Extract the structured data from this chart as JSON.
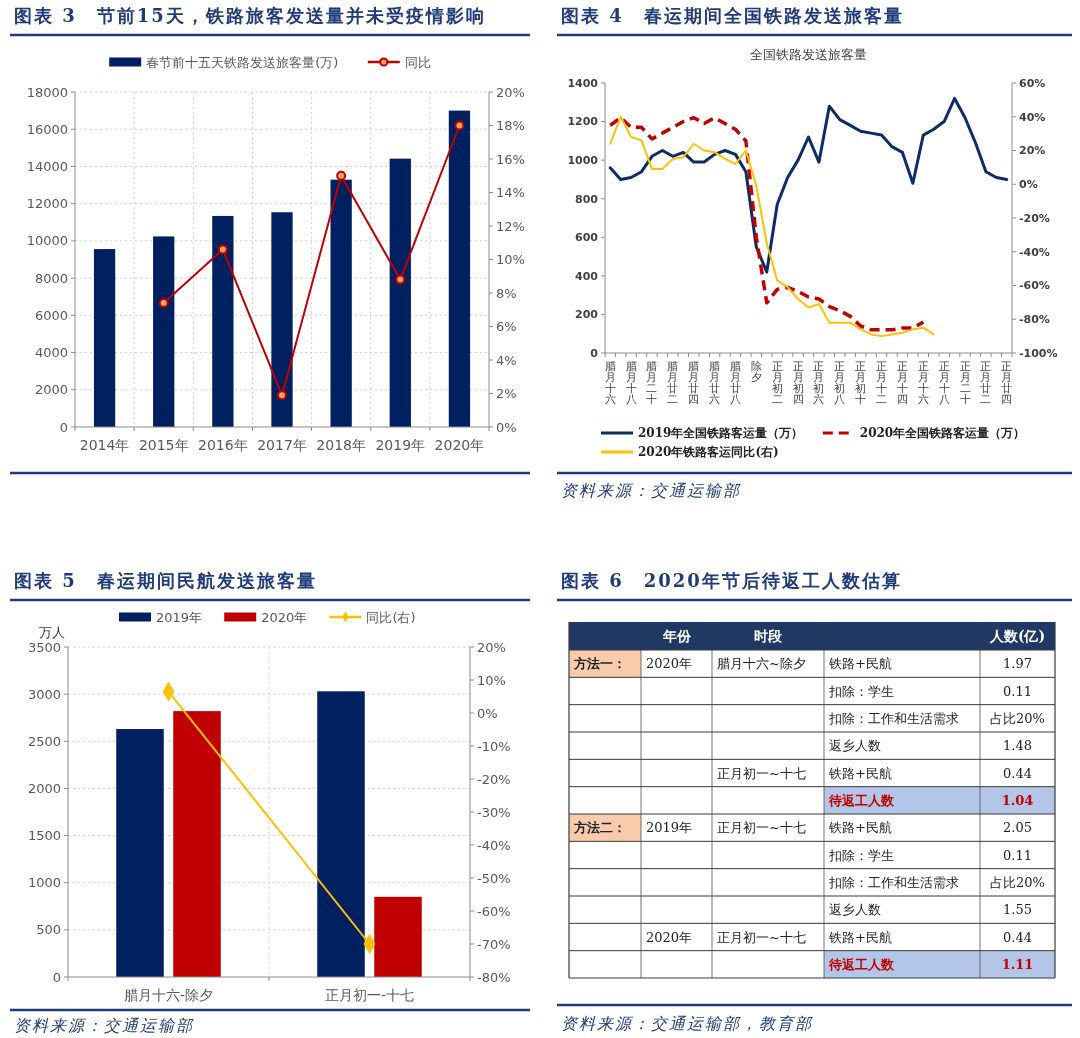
{
  "chart_data": [
    {
      "type": "bar",
      "title": "图表 3　节前15天，铁路旅客发送量并未受疫情影响",
      "categories": [
        "2014年",
        "2015年",
        "2016年",
        "2017年",
        "2018年",
        "2019年",
        "2020年"
      ],
      "series": [
        {
          "name": "春节前十五天铁路发送旅客量(万)",
          "color": "#002060",
          "values": [
            9560,
            10240,
            11340,
            11540,
            13290,
            14420,
            17000
          ]
        },
        {
          "name": "同比",
          "type": "line",
          "axis": "y2",
          "color": "#c00000",
          "values": [
            null,
            7.4,
            10.6,
            1.9,
            15.0,
            8.8,
            18.0
          ]
        }
      ],
      "marker": "circle",
      "ylim": [
        0,
        18000
      ],
      "yticks": [
        0,
        2000,
        4000,
        6000,
        8000,
        10000,
        12000,
        14000,
        16000,
        18000
      ],
      "y2lim": [
        0,
        20
      ],
      "y2ticks": [
        {
          "value": 0,
          "label": "0%"
        },
        {
          "value": 2,
          "label": "2%"
        },
        {
          "value": 4,
          "label": "4%"
        },
        {
          "value": 6,
          "label": "6%"
        },
        {
          "value": 8,
          "label": "8%"
        },
        {
          "value": 10,
          "label": "10%"
        },
        {
          "value": 12,
          "label": "12%"
        },
        {
          "value": 14,
          "label": "14%"
        },
        {
          "value": 16,
          "label": "16%"
        },
        {
          "value": 18,
          "label": "18%"
        },
        {
          "value": 20,
          "label": "20%"
        }
      ],
      "grid": true,
      "legend": "top"
    },
    {
      "type": "line",
      "title": "图表 4　春运期间全国铁路发送旅客量",
      "subtitle": "全国铁路发送旅客量",
      "categories": [
        "腊月十六",
        null,
        "腊月十八",
        null,
        "腊月二十",
        null,
        "腊月廿二",
        null,
        "腊月廿四",
        null,
        "腊月廿六",
        null,
        "腊月廿八",
        null,
        "除夕",
        null,
        "正月初二",
        null,
        "正月初四",
        null,
        "正月初六",
        null,
        "正月初八",
        null,
        "正月初十",
        null,
        "正月十二",
        null,
        "正月十四",
        null,
        "正月十六",
        null,
        "正月十八",
        null,
        "正月二十",
        null,
        "正月廿二",
        null,
        "正月廿四"
      ],
      "series": [
        {
          "name": "2019年全国铁路客运量（万）",
          "color": "#0c2c64",
          "values": [
            960,
            900,
            910,
            940,
            1020,
            1050,
            1020,
            1040,
            990,
            990,
            1030,
            1050,
            1030,
            940,
            550,
            420,
            770,
            910,
            1000,
            1120,
            990,
            1280,
            1210,
            1180,
            1150,
            1140,
            1130,
            1070,
            1040,
            880,
            1130,
            1160,
            1200,
            1320,
            1220,
            1090,
            940,
            910,
            900
          ]
        },
        {
          "name": "2020年全国铁路客运量（万）",
          "color": "#c00000",
          "line_style": "dashed",
          "values": [
            1180,
            1220,
            1170,
            1170,
            1110,
            1140,
            1170,
            1200,
            1220,
            1190,
            1220,
            1190,
            1160,
            1100,
            600,
            260,
            330,
            340,
            320,
            290,
            280,
            240,
            220,
            190,
            140,
            120,
            120,
            120,
            130,
            130,
            160,
            null,
            null,
            null,
            null,
            null,
            null,
            null,
            null
          ]
        },
        {
          "name": "2020年铁路客运同比(右)",
          "color": "#ffc000",
          "axis": "y2",
          "values": [
            24,
            40,
            28,
            26,
            9,
            9,
            15,
            16,
            24,
            20,
            19,
            15,
            12,
            20,
            -1,
            -35,
            -57,
            -61,
            -68,
            -73,
            -71,
            -82,
            -82,
            -82,
            -86,
            -89,
            -90,
            -89,
            -88,
            -86,
            -85,
            -89,
            null,
            null,
            null,
            null,
            null,
            null,
            null
          ]
        }
      ],
      "line_style": "solid",
      "ylim": [
        0,
        1400
      ],
      "yticks": [
        0,
        200,
        400,
        600,
        800,
        1000,
        1200,
        1400
      ],
      "y2lim": [
        -100,
        60
      ],
      "y2ticks": [
        {
          "value": -100,
          "label": "-100%"
        },
        {
          "value": -80,
          "label": "-80%"
        },
        {
          "value": -60,
          "label": "-60%"
        },
        {
          "value": -40,
          "label": "-40%"
        },
        {
          "value": -20,
          "label": "-20%"
        },
        {
          "value": 0,
          "label": "0%"
        },
        {
          "value": 20,
          "label": "20%"
        },
        {
          "value": 40,
          "label": "40%"
        },
        {
          "value": 60,
          "label": "60%"
        }
      ],
      "legend": "bottom",
      "annotations": [
        "资料来源：交通运输部"
      ]
    },
    {
      "type": "bar",
      "title": "图表 5　春运期间民航发送旅客量",
      "ylabel": "万人",
      "categories": [
        "腊月十六-除夕",
        "正月初一-十七"
      ],
      "series": [
        {
          "name": "2019年",
          "color": "#002060",
          "values": [
            2630,
            3030
          ]
        },
        {
          "name": "2020年",
          "color": "#c00000",
          "values": [
            2820,
            850
          ]
        },
        {
          "name": "同比(右)",
          "type": "line",
          "axis": "y2",
          "color": "#ffc000",
          "marker": "diamond",
          "values": [
            6.5,
            -70
          ]
        }
      ],
      "ylim": [
        0,
        3500
      ],
      "yticks": [
        0,
        500,
        1000,
        1500,
        2000,
        2500,
        3000,
        3500
      ],
      "y2lim": [
        -80,
        20
      ],
      "y2ticks": [
        {
          "value": -80,
          "label": "-80%"
        },
        {
          "value": -70,
          "label": "-70%"
        },
        {
          "value": -60,
          "label": "-60%"
        },
        {
          "value": -50,
          "label": "-50%"
        },
        {
          "value": -40,
          "label": "-40%"
        },
        {
          "value": -30,
          "label": "-30%"
        },
        {
          "value": -20,
          "label": "-20%"
        },
        {
          "value": -10,
          "label": "-10%"
        },
        {
          "value": 0,
          "label": "0%"
        },
        {
          "value": 10,
          "label": "10%"
        },
        {
          "value": 20,
          "label": "20%"
        }
      ],
      "grid": true,
      "legend": "top",
      "annotations": [
        "资料来源：交通运输部"
      ]
    },
    {
      "type": "other",
      "title": "图表 6　2020年节后待返工人数估算",
      "categories": [
        null,
        "年份",
        "时段",
        null,
        "人数(亿)"
      ],
      "cell_labels": [
        [
          "方法一：",
          "2020年",
          "腊月十六~除夕",
          "铁路+民航",
          "1.97"
        ],
        [
          null,
          null,
          null,
          "扣除：学生",
          "0.11"
        ],
        [
          null,
          null,
          null,
          "扣除：工作和生活需求",
          "占比20%"
        ],
        [
          null,
          null,
          null,
          "返乡人数",
          "1.48"
        ],
        [
          null,
          null,
          "正月初一~十七",
          "铁路+民航",
          "0.44"
        ],
        [
          null,
          null,
          null,
          "待返工人数",
          "1.04"
        ],
        [
          "方法二：",
          "2019年",
          "正月初一~十七",
          "铁路+民航",
          "2.05"
        ],
        [
          null,
          null,
          null,
          "扣除：学生",
          "0.11"
        ],
        [
          null,
          null,
          null,
          "扣除：工作和生活需求",
          "占比20%"
        ],
        [
          null,
          null,
          null,
          "返乡人数",
          "1.55"
        ],
        [
          null,
          "2020年",
          "正月初一~十七",
          "铁路+民航",
          "0.44"
        ],
        [
          null,
          null,
          null,
          "待返工人数",
          "1.11"
        ]
      ],
      "colors": [
        null,
        null,
        null,
        null,
        null,
        "#b4c6e7",
        null,
        null,
        null,
        null,
        null,
        "#b4c6e7"
      ],
      "annotations": [
        "资料来源：交通运输部，教育部"
      ]
    }
  ]
}
